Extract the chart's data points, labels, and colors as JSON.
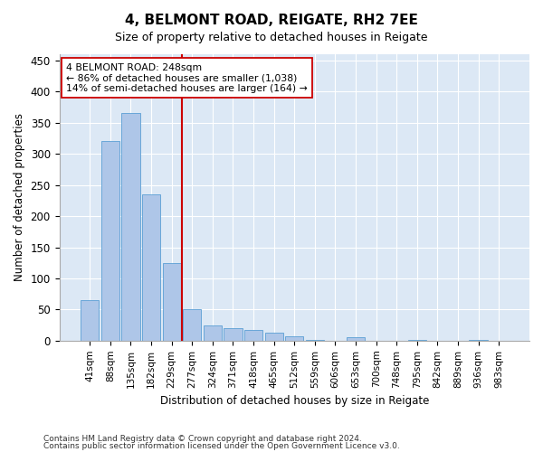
{
  "title": "4, BELMONT ROAD, REIGATE, RH2 7EE",
  "subtitle": "Size of property relative to detached houses in Reigate",
  "xlabel": "Distribution of detached houses by size in Reigate",
  "ylabel": "Number of detached properties",
  "categories": [
    "41sqm",
    "88sqm",
    "135sqm",
    "182sqm",
    "229sqm",
    "277sqm",
    "324sqm",
    "371sqm",
    "418sqm",
    "465sqm",
    "512sqm",
    "559sqm",
    "606sqm",
    "653sqm",
    "700sqm",
    "748sqm",
    "795sqm",
    "842sqm",
    "889sqm",
    "936sqm",
    "983sqm"
  ],
  "values": [
    65,
    320,
    365,
    235,
    125,
    50,
    25,
    20,
    17,
    13,
    7,
    1,
    0,
    5,
    0,
    0,
    1,
    0,
    0,
    1,
    0
  ],
  "bar_color": "#aec6e8",
  "bar_edge_color": "#5a9fd4",
  "vline_x_index": 5,
  "vline_color": "#cc0000",
  "annotation_line1": "4 BELMONT ROAD: 248sqm",
  "annotation_line2": "← 86% of detached houses are smaller (1,038)",
  "annotation_line3": "14% of semi-detached houses are larger (164) →",
  "ylim": [
    0,
    460
  ],
  "yticks": [
    0,
    50,
    100,
    150,
    200,
    250,
    300,
    350,
    400,
    450
  ],
  "bg_color": "#dce8f5",
  "footer1": "Contains HM Land Registry data © Crown copyright and database right 2024.",
  "footer2": "Contains public sector information licensed under the Open Government Licence v3.0."
}
